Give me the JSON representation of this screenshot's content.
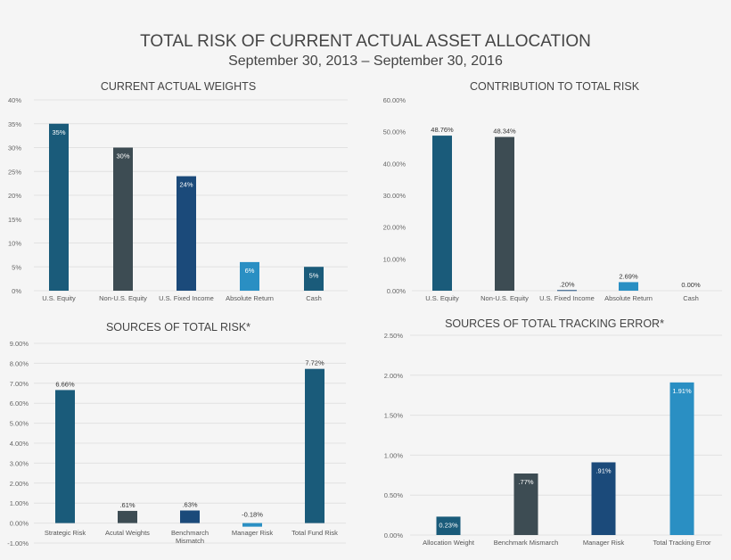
{
  "header": {
    "title": "TOTAL RISK OF CURRENT ACTUAL ASSET ALLOCATION",
    "subtitle": "September 30, 2013 – September 30, 2016"
  },
  "colors": {
    "teal": "#1a5b7a",
    "slate": "#3d4c53",
    "navy": "#1b4a7a",
    "light_blue": "#2a8fc3",
    "grid": "#e2e2e2"
  },
  "chart_data": [
    {
      "type": "bar",
      "title": "CURRENT ACTUAL WEIGHTS",
      "categories": [
        "U.S. Equity",
        "Non-U.S. Equity",
        "U.S. Fixed Income",
        "Absolute Return",
        "Cash"
      ],
      "values": [
        35,
        30,
        24,
        6,
        5
      ],
      "value_labels": [
        "35%",
        "30%",
        "24%",
        "6%",
        "5%"
      ],
      "ylim": [
        0,
        40
      ],
      "yticks": [
        0,
        5,
        10,
        15,
        20,
        25,
        30,
        35,
        40
      ],
      "ytick_labels": [
        "0%",
        "5%",
        "10%",
        "15%",
        "20%",
        "25%",
        "30%",
        "35%",
        "40%"
      ],
      "bar_colors": [
        "#1a5b7a",
        "#3d4c53",
        "#1b4a7a",
        "#2a8fc3",
        "#1a5b7a"
      ],
      "label_position": "inside",
      "grid": true
    },
    {
      "type": "bar",
      "title": "CONTRIBUTION TO TOTAL RISK",
      "categories": [
        "U.S. Equity",
        "Non-U.S. Equity",
        "U.S. Fixed Income",
        "Absolute Return",
        "Cash"
      ],
      "values": [
        48.76,
        48.34,
        0.2,
        2.69,
        0
      ],
      "value_labels": [
        "48.76%",
        "48.34%",
        ".20%",
        "2.69%",
        "0.00%"
      ],
      "ylim": [
        0,
        60
      ],
      "yticks": [
        0,
        10,
        20,
        30,
        40,
        50,
        60
      ],
      "ytick_labels": [
        "0.00%",
        "10.00%",
        "20.00%",
        "30.00%",
        "40.00%",
        "50.00%",
        "60.00%"
      ],
      "bar_colors": [
        "#1a5b7a",
        "#3d4c53",
        "#1b4a7a",
        "#2a8fc3",
        "#1a5b7a"
      ],
      "label_position": "above",
      "grid": false
    },
    {
      "type": "bar",
      "title": "SOURCES OF TOTAL RISK*",
      "categories": [
        "Strategic Risk",
        "Acutal Weights",
        "Benchmarch Mismatch",
        "Manager Risk",
        "Total Fund Risk"
      ],
      "values": [
        6.66,
        0.61,
        0.63,
        -0.18,
        7.72
      ],
      "value_labels": [
        "6.66%",
        ".61%",
        ".63%",
        "-0.18%",
        "7.72%"
      ],
      "ylim": [
        -1,
        9
      ],
      "yticks": [
        -1,
        0,
        1,
        2,
        3,
        4,
        5,
        6,
        7,
        8,
        9
      ],
      "ytick_labels": [
        "-1.00%",
        "0.00%",
        "1.00%",
        "2.00%",
        "3.00%",
        "4.00%",
        "5.00%",
        "6.00%",
        "7.00%",
        "8.00%",
        "9.00%"
      ],
      "bar_colors": [
        "#1a5b7a",
        "#3d4c53",
        "#1b4a7a",
        "#2a8fc3",
        "#1a5b7a"
      ],
      "label_position": "above",
      "grid": true
    },
    {
      "type": "bar",
      "title": "SOURCES OF TOTAL TRACKING ERROR*",
      "categories": [
        "Allocation Weight",
        "Benchmark Mismarch",
        "Manager Risk",
        "Total Tracking Error"
      ],
      "values": [
        0.23,
        0.77,
        0.91,
        1.91
      ],
      "value_labels": [
        "0.23%",
        ".77%",
        ".91%",
        "1.91%"
      ],
      "ylim": [
        0,
        2.5
      ],
      "yticks": [
        0,
        0.5,
        1,
        1.5,
        2,
        2.5
      ],
      "ytick_labels": [
        "0.00%",
        "0.50%",
        "1.00%",
        "1.50%",
        "2.00%",
        "2.50%"
      ],
      "bar_colors": [
        "#1a5b7a",
        "#3d4c53",
        "#1b4a7a",
        "#2a8fc3"
      ],
      "label_position": "inside",
      "grid": true
    }
  ]
}
